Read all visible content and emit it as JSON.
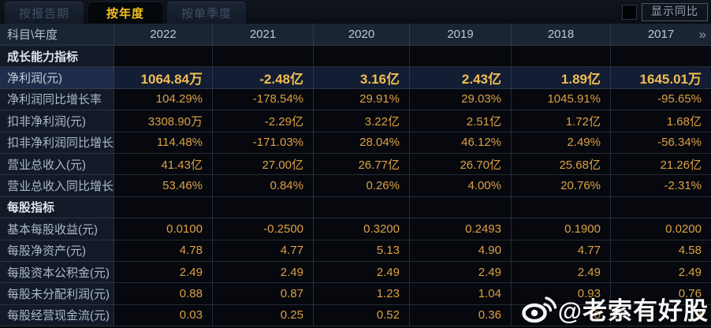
{
  "tabs": [
    {
      "label": "按报告期",
      "active": false
    },
    {
      "label": "按年度",
      "active": true
    },
    {
      "label": "按单季度",
      "active": false
    }
  ],
  "controls": {
    "yoy_checkbox_checked": false,
    "show_yoy_label": "显示同比"
  },
  "table": {
    "corner_label": "科目\\年度",
    "years": [
      "2022",
      "2021",
      "2020",
      "2019",
      "2018",
      "2017"
    ],
    "more_icon": "»",
    "rows": [
      {
        "type": "section",
        "label": "成长能力指标",
        "values": [
          "",
          "",
          "",
          "",
          "",
          ""
        ]
      },
      {
        "type": "data",
        "highlight": true,
        "label": "净利润(元)",
        "values": [
          "1064.84万",
          "-2.48亿",
          "3.16亿",
          "2.43亿",
          "1.89亿",
          "1645.01万"
        ]
      },
      {
        "type": "data",
        "label": "净利润同比增长率",
        "values": [
          "104.29%",
          "-178.54%",
          "29.91%",
          "29.03%",
          "1045.91%",
          "-95.65%"
        ]
      },
      {
        "type": "data",
        "label": "扣非净利润(元)",
        "values": [
          "3308.90万",
          "-2.29亿",
          "3.22亿",
          "2.51亿",
          "1.72亿",
          "1.68亿"
        ]
      },
      {
        "type": "data",
        "label": "扣非净利润同比增长率",
        "values": [
          "114.48%",
          "-171.03%",
          "28.04%",
          "46.12%",
          "2.49%",
          "-56.34%"
        ]
      },
      {
        "type": "data",
        "label": "营业总收入(元)",
        "values": [
          "41.43亿",
          "27.00亿",
          "26.77亿",
          "26.70亿",
          "25.68亿",
          "21.26亿"
        ]
      },
      {
        "type": "data",
        "label": "营业总收入同比增长率",
        "values": [
          "53.46%",
          "0.84%",
          "0.26%",
          "4.00%",
          "20.76%",
          "-2.31%"
        ]
      },
      {
        "type": "section",
        "label": "每股指标",
        "values": [
          "",
          "",
          "",
          "",
          "",
          ""
        ]
      },
      {
        "type": "data",
        "label": "基本每股收益(元)",
        "values": [
          "0.0100",
          "-0.2500",
          "0.3200",
          "0.2493",
          "0.1900",
          "0.0200"
        ]
      },
      {
        "type": "data",
        "label": "每股净资产(元)",
        "values": [
          "4.78",
          "4.77",
          "5.13",
          "4.90",
          "4.77",
          "4.58"
        ]
      },
      {
        "type": "data",
        "label": "每股资本公积金(元)",
        "values": [
          "2.49",
          "2.49",
          "2.49",
          "2.49",
          "2.49",
          "2.49"
        ]
      },
      {
        "type": "data",
        "label": "每股未分配利润(元)",
        "values": [
          "0.88",
          "0.87",
          "1.23",
          "1.04",
          "0.93",
          "0.76"
        ]
      },
      {
        "type": "data",
        "label": "每股经营现金流(元)",
        "values": [
          "0.03",
          "0.25",
          "0.52",
          "0.36",
          "0",
          "9"
        ],
        "note": "2018 and 2017 values partially obscured by watermark"
      }
    ]
  },
  "watermark": {
    "icon": "weibo-logo",
    "text": "@老索有好股"
  },
  "colors": {
    "active_tab_text": "#f2c01e",
    "value_gold": "#dda044",
    "highlight_value_gold": "#f0bd52",
    "highlight_row_bg": "#1f2c4a",
    "header_row_bg": "#1a2433",
    "label_column_bg": "#121a27",
    "data_cell_bg": "#06080d",
    "grid_line": "#3e4a5a"
  }
}
